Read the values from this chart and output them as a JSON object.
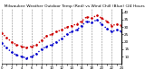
{
  "title": "  Milwaukee Weather Outdoor Temp (Red) vs Wind Chill (Blue) (24 Hours)",
  "title_fontsize": 3.2,
  "background_color": "#ffffff",
  "grid_color": "#888888",
  "hours": [
    0,
    1,
    2,
    3,
    4,
    5,
    6,
    7,
    8,
    9,
    10,
    11,
    12,
    13,
    14,
    15,
    16,
    17,
    18,
    19,
    20,
    21,
    22,
    23,
    24
  ],
  "temp": [
    26,
    23,
    20,
    18,
    17,
    16,
    17,
    18,
    21,
    24,
    25,
    27,
    28,
    30,
    31,
    32,
    34,
    37,
    36,
    38,
    36,
    34,
    31,
    32,
    31
  ],
  "windchill": [
    19,
    16,
    13,
    11,
    10,
    9,
    10,
    12,
    15,
    17,
    18,
    20,
    22,
    25,
    27,
    28,
    31,
    34,
    33,
    35,
    32,
    29,
    27,
    28,
    27
  ],
  "temp_color": "#cc0000",
  "windchill_color": "#0000cc",
  "ylim": [
    5,
    42
  ],
  "yticks": [
    10,
    15,
    20,
    25,
    30,
    35,
    40
  ],
  "ytick_labels": [
    "10",
    "15",
    "20",
    "25",
    "30",
    "35",
    "40"
  ],
  "ytick_fontsize": 3.0,
  "xtick_fontsize": 2.8,
  "line_style": "dotted",
  "line_width": 1.0,
  "marker": ".",
  "marker_size": 1.8
}
